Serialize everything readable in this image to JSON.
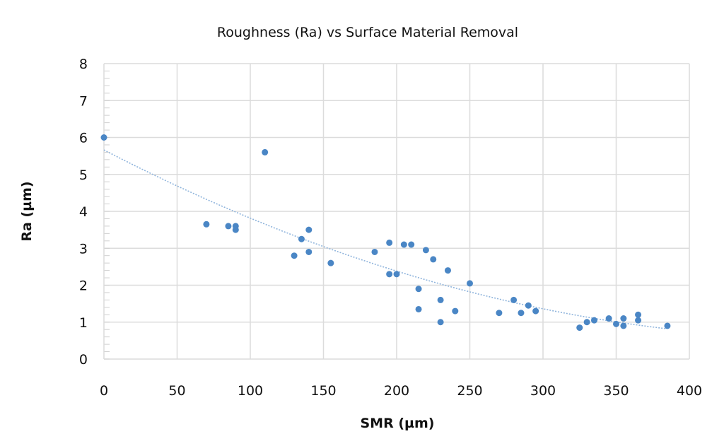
{
  "chart_data": {
    "type": "scatter",
    "title": "Roughness (Ra) vs Surface Material Removal",
    "xlabel": "SMR (µm)",
    "ylabel": "Ra (µm)",
    "xlim": [
      0,
      400
    ],
    "ylim": [
      0,
      8
    ],
    "xticks": [
      0,
      50,
      100,
      150,
      200,
      250,
      300,
      350,
      400
    ],
    "yticks": [
      0,
      1,
      2,
      3,
      4,
      5,
      6,
      7,
      8
    ],
    "grid": true,
    "legend": "none",
    "point_color": "#4a86c5",
    "trendline": {
      "type": "polynomial-2",
      "style": "dotted",
      "color": "#8fb4dc"
    },
    "points": [
      [
        0,
        6.0
      ],
      [
        110,
        5.6
      ],
      [
        70,
        3.65
      ],
      [
        85,
        3.6
      ],
      [
        90,
        3.6
      ],
      [
        90,
        3.5
      ],
      [
        130,
        2.8
      ],
      [
        135,
        3.25
      ],
      [
        140,
        3.5
      ],
      [
        140,
        2.9
      ],
      [
        155,
        2.6
      ],
      [
        185,
        2.9
      ],
      [
        195,
        3.15
      ],
      [
        195,
        2.3
      ],
      [
        200,
        2.3
      ],
      [
        205,
        3.1
      ],
      [
        210,
        3.1
      ],
      [
        215,
        1.9
      ],
      [
        215,
        1.35
      ],
      [
        220,
        2.95
      ],
      [
        225,
        2.7
      ],
      [
        230,
        1.6
      ],
      [
        230,
        1.0
      ],
      [
        235,
        2.4
      ],
      [
        240,
        1.3
      ],
      [
        250,
        2.05
      ],
      [
        270,
        1.25
      ],
      [
        280,
        1.6
      ],
      [
        285,
        1.25
      ],
      [
        290,
        1.45
      ],
      [
        295,
        1.3
      ],
      [
        325,
        0.85
      ],
      [
        330,
        1.0
      ],
      [
        335,
        1.05
      ],
      [
        345,
        1.1
      ],
      [
        350,
        0.95
      ],
      [
        355,
        1.1
      ],
      [
        355,
        0.9
      ],
      [
        365,
        1.2
      ],
      [
        365,
        1.05
      ],
      [
        385,
        0.9
      ]
    ]
  }
}
